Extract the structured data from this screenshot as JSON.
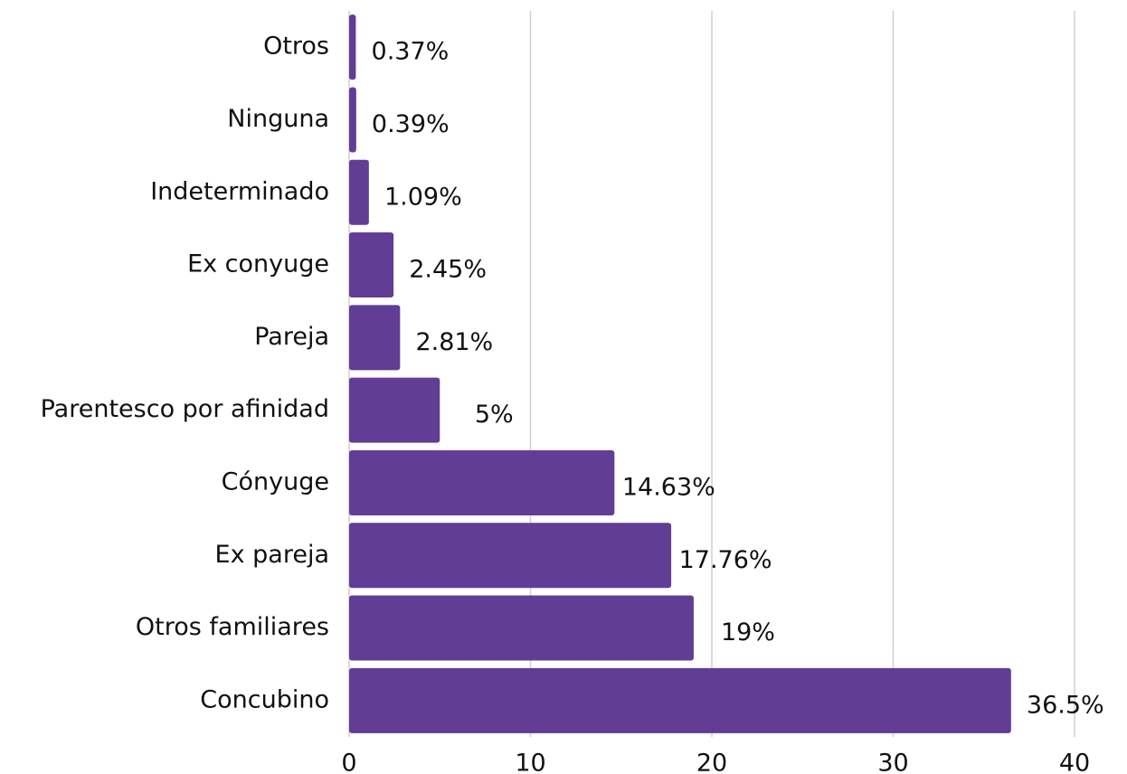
{
  "chart_data": {
    "type": "hbar",
    "categories": [
      "Otros",
      "Ninguna",
      "Indeterminado",
      "Ex conyuge",
      "Pareja",
      "Parentesco por afinidad",
      "Cónyuge",
      "Ex pareja",
      "Otros familiares",
      "Concubino"
    ],
    "values": [
      0.37,
      0.39,
      1.09,
      2.45,
      2.81,
      5,
      14.63,
      17.76,
      19,
      36.5
    ],
    "value_labels": [
      "0.37%",
      "0.39%",
      "1.09%",
      "2.45%",
      "2.81%",
      "5%",
      "14.63%",
      "17.76%",
      "19%",
      "36.5%"
    ],
    "color": "#613d96",
    "xlim": [
      0,
      40
    ],
    "xticks": [
      0,
      10,
      20,
      30,
      40
    ],
    "grid": true
  }
}
